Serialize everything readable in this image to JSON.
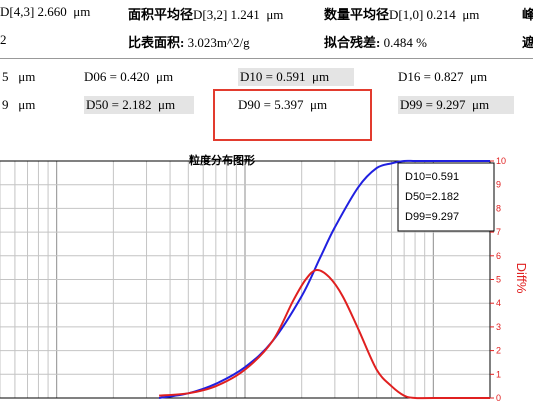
{
  "summary": {
    "row1": [
      {
        "label": "",
        "value": "D[4,3] 2.660",
        "unit": "μm"
      },
      {
        "label": "面积平均径",
        "value": "D[3,2] 1.241",
        "unit": "μm"
      },
      {
        "label": "数量平均径",
        "value": "D[1,0] 0.214",
        "unit": "μm"
      },
      {
        "label": "峰",
        "value": "",
        "unit": ""
      }
    ],
    "row2": [
      {
        "label": "",
        "value": "2",
        "unit": ""
      },
      {
        "label": "比表面积:",
        "value": "3.023m^2/g",
        "unit": ""
      },
      {
        "label": "拟合残差:",
        "value": "0.484 %",
        "unit": ""
      },
      {
        "label": "遮",
        "value": "",
        "unit": ""
      }
    ]
  },
  "percentiles": {
    "row1": [
      {
        "text": "5",
        "unit": "μm"
      },
      {
        "text": "D06 = 0.420",
        "unit": "μm"
      },
      {
        "text": "D10 = 0.591",
        "unit": "μm"
      },
      {
        "text": "D16 = 0.827",
        "unit": "μm"
      }
    ],
    "row2": [
      {
        "text": "9",
        "unit": "μm"
      },
      {
        "text": "D50 = 2.182",
        "unit": "μm"
      },
      {
        "text": "D90 = 5.397",
        "unit": "μm"
      },
      {
        "text": "D99 = 9.297",
        "unit": "μm"
      }
    ]
  },
  "chart_data": {
    "type": "line",
    "title": "粒度分布图形",
    "x_scale": "log",
    "xlim": [
      0.05,
      20
    ],
    "ylim_right": [
      0,
      10
    ],
    "y_right_ticks": [
      "10",
      "9",
      "8",
      "7",
      "6",
      "5",
      "4",
      "3",
      "2",
      "1",
      "0"
    ],
    "y_right_label": "Diff%",
    "grid": true,
    "legend_box": [
      "D10=0.591",
      "D50=2.182",
      "D99=9.297"
    ],
    "legend_placement": "top-right",
    "series": [
      {
        "color": "#2020e0",
        "x": [
          0.35,
          0.5,
          0.7,
          1.0,
          1.4,
          2.0,
          2.5,
          3.0,
          4.0,
          5.0,
          6.0,
          7.0,
          8.0,
          10.0,
          20.0
        ],
        "y": [
          0,
          0.2,
          0.6,
          1.3,
          2.4,
          4.3,
          5.9,
          7.2,
          8.9,
          9.7,
          9.9,
          10,
          10,
          10,
          10
        ]
      },
      {
        "color": "#e02020",
        "x": [
          0.35,
          0.5,
          0.7,
          1.0,
          1.4,
          1.8,
          2.1,
          2.4,
          2.8,
          3.3,
          4.0,
          5.0,
          6.0,
          7.0,
          8.0,
          10.0,
          20.0
        ],
        "y": [
          0.1,
          0.2,
          0.5,
          1.2,
          2.4,
          4.1,
          5.0,
          5.4,
          5.1,
          4.3,
          2.9,
          1.2,
          0.5,
          0.1,
          0,
          0,
          0
        ]
      }
    ]
  },
  "colors": {
    "highlight_box": "#e23b2e",
    "cell_bg": "#e4e4e4",
    "blue_line": "#2020e0",
    "red_line": "#e02020"
  }
}
